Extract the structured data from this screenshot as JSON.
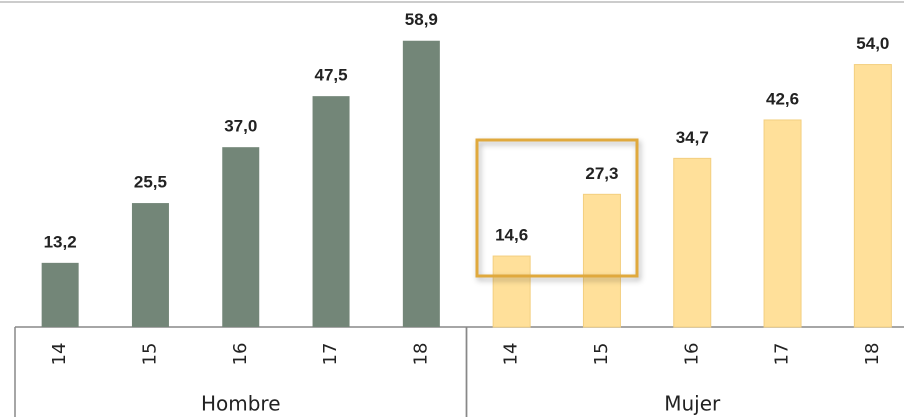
{
  "chart_data": {
    "type": "bar",
    "categories": [
      "14",
      "15",
      "16",
      "17",
      "18"
    ],
    "series": [
      {
        "name": "Hombre",
        "color": "#738678",
        "values": [
          13.2,
          25.5,
          37.0,
          47.5,
          58.9
        ],
        "value_labels": [
          "13,2",
          "25,5",
          "37,0",
          "47,5",
          "58,9"
        ]
      },
      {
        "name": "Mujer",
        "color": "#ffe09a",
        "values": [
          14.6,
          27.3,
          34.7,
          42.6,
          54.0
        ],
        "value_labels": [
          "14,6",
          "27,3",
          "34,7",
          "42,6",
          "54,0"
        ]
      }
    ]
  }
}
